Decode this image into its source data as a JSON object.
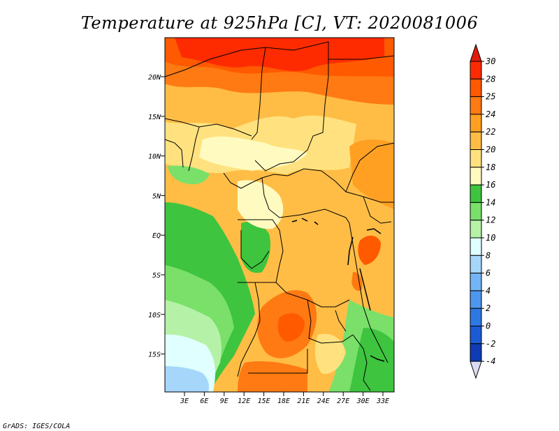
{
  "title": "Temperature at 925hPa [C], VT: 2020081006",
  "credit": "GrADS: IGES/COLA",
  "map": {
    "lon_ticks": [
      "3E",
      "6E",
      "9E",
      "12E",
      "15E",
      "18E",
      "21E",
      "24E",
      "27E",
      "30E",
      "33E"
    ],
    "lat_ticks": [
      "20N",
      "15N",
      "10N",
      "5N",
      "EQ",
      "5S",
      "10S",
      "15S"
    ]
  },
  "colorbar": {
    "levels": [
      "30",
      "28",
      "25",
      "24",
      "22",
      "20",
      "18",
      "16",
      "14",
      "12",
      "10",
      "8",
      "6",
      "4",
      "2",
      "0",
      "-2",
      "-4"
    ],
    "colors": [
      "#ff2b00",
      "#ff5a00",
      "#ff7a12",
      "#ffa023",
      "#ffbd46",
      "#ffe27f",
      "#fffbc0",
      "#3ec43e",
      "#7ae06a",
      "#b5f2a8",
      "#e0ffff",
      "#a7d6fb",
      "#74b6f5",
      "#4d98ee",
      "#2e78e4",
      "#1b5bd6",
      "#0f3cb4",
      "#0b1e82"
    ],
    "over_color": "#e11b0b",
    "under_color": "#dcdcf4"
  }
}
